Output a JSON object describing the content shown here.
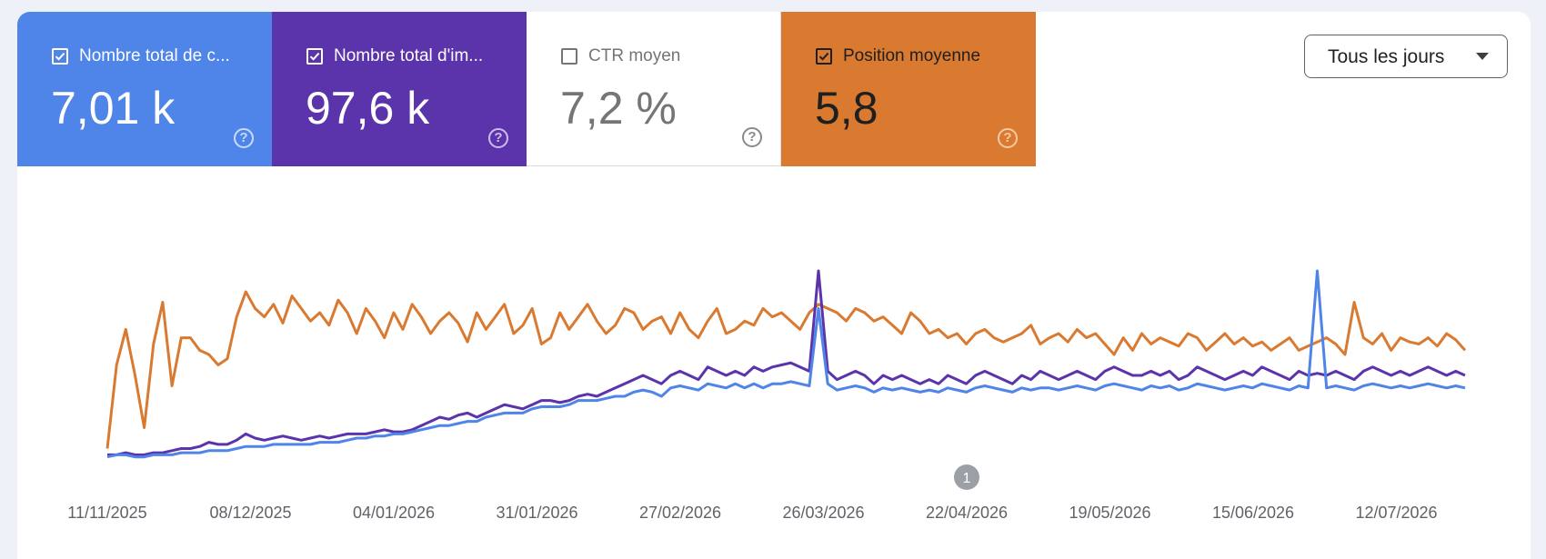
{
  "metrics": [
    {
      "label": "Nombre total de c...",
      "value": "7,01 k",
      "checked": true
    },
    {
      "label": "Nombre total d'im...",
      "value": "97,6 k",
      "checked": true
    },
    {
      "label": "CTR moyen",
      "value": "7,2 %",
      "checked": false
    },
    {
      "label": "Position moyenne",
      "value": "5,8",
      "checked": true
    }
  ],
  "help_glyph": "?",
  "period_select": {
    "value": "Tous les jours"
  },
  "annotation": {
    "label": "1",
    "date": "22/04/2026"
  },
  "colors": {
    "clicks": "#4f84e8",
    "impressions": "#5b34ac",
    "position": "#d97a30"
  },
  "chart_data": {
    "type": "line",
    "x_ticks": [
      "11/11/2025",
      "08/12/2025",
      "04/01/2026",
      "31/01/2026",
      "27/02/2026",
      "26/03/2026",
      "22/04/2026",
      "19/05/2026",
      "15/06/2026",
      "12/07/2026"
    ],
    "x_range": [
      "11/11/2025",
      "26/07/2026"
    ],
    "y_axis_visible": false,
    "grid": false,
    "legend": "metric cards above chart",
    "note": "Values are relative series levels (0-100 scale) estimated from the plot; axis values not shown.",
    "series": [
      {
        "name": "Position moyenne",
        "color": "#d97a30",
        "values": [
          5,
          45,
          62,
          40,
          15,
          55,
          75,
          35,
          58,
          58,
          52,
          50,
          45,
          48,
          68,
          80,
          72,
          68,
          74,
          65,
          78,
          72,
          66,
          70,
          64,
          76,
          70,
          60,
          72,
          66,
          58,
          70,
          62,
          74,
          68,
          60,
          66,
          70,
          65,
          56,
          70,
          62,
          68,
          74,
          60,
          64,
          72,
          55,
          58,
          70,
          62,
          68,
          74,
          66,
          60,
          64,
          72,
          70,
          62,
          66,
          68,
          60,
          70,
          62,
          58,
          66,
          72,
          60,
          62,
          66,
          64,
          72,
          68,
          70,
          66,
          62,
          70,
          74,
          72,
          70,
          66,
          72,
          70,
          66,
          68,
          64,
          60,
          70,
          66,
          60,
          62,
          58,
          60,
          55,
          60,
          62,
          58,
          56,
          58,
          60,
          64,
          55,
          58,
          60,
          56,
          62,
          58,
          60,
          55,
          50,
          58,
          52,
          60,
          55,
          58,
          56,
          54,
          60,
          58,
          52,
          56,
          60,
          55,
          58,
          54,
          56,
          52,
          55,
          58,
          52,
          54,
          56,
          58,
          55,
          50,
          75,
          58,
          55,
          60,
          52,
          58,
          56,
          55,
          58,
          54,
          60,
          57,
          52
        ]
      },
      {
        "name": "Nombre total d'impressions",
        "color": "#5b34ac",
        "values": [
          2,
          2,
          3,
          2,
          2,
          3,
          3,
          4,
          5,
          5,
          6,
          8,
          7,
          7,
          9,
          12,
          10,
          9,
          10,
          11,
          10,
          9,
          10,
          11,
          10,
          11,
          12,
          12,
          12,
          13,
          14,
          13,
          13,
          14,
          16,
          18,
          20,
          19,
          21,
          22,
          20,
          22,
          24,
          26,
          25,
          24,
          26,
          28,
          28,
          27,
          28,
          30,
          31,
          30,
          32,
          34,
          36,
          38,
          40,
          38,
          36,
          40,
          42,
          40,
          38,
          44,
          42,
          40,
          42,
          40,
          44,
          42,
          44,
          45,
          46,
          44,
          42,
          90,
          42,
          38,
          40,
          42,
          40,
          36,
          40,
          38,
          40,
          38,
          36,
          38,
          36,
          40,
          38,
          36,
          40,
          42,
          40,
          38,
          36,
          40,
          38,
          42,
          40,
          38,
          40,
          42,
          40,
          38,
          42,
          44,
          42,
          40,
          40,
          42,
          40,
          42,
          38,
          40,
          44,
          42,
          40,
          38,
          40,
          42,
          40,
          44,
          42,
          40,
          38,
          42,
          40,
          41,
          40,
          42,
          40,
          38,
          42,
          44,
          42,
          40,
          42,
          40,
          42,
          44,
          42,
          40,
          42,
          40
        ]
      },
      {
        "name": "Nombre total de clics",
        "color": "#4f84e8",
        "values": [
          1,
          2,
          2,
          1,
          1,
          2,
          2,
          2,
          3,
          3,
          3,
          4,
          4,
          4,
          5,
          6,
          6,
          6,
          7,
          7,
          7,
          7,
          7,
          8,
          8,
          8,
          9,
          10,
          10,
          11,
          11,
          12,
          12,
          13,
          14,
          15,
          16,
          16,
          17,
          18,
          18,
          20,
          21,
          22,
          22,
          22,
          24,
          25,
          25,
          25,
          26,
          28,
          28,
          28,
          29,
          30,
          30,
          32,
          33,
          32,
          30,
          34,
          35,
          34,
          33,
          36,
          35,
          34,
          36,
          34,
          36,
          34,
          36,
          36,
          37,
          36,
          35,
          72,
          36,
          33,
          34,
          35,
          34,
          32,
          34,
          33,
          34,
          33,
          32,
          33,
          32,
          34,
          33,
          32,
          34,
          35,
          34,
          33,
          32,
          34,
          33,
          34,
          34,
          33,
          34,
          35,
          34,
          33,
          35,
          36,
          35,
          34,
          33,
          35,
          34,
          35,
          33,
          34,
          36,
          35,
          34,
          33,
          34,
          35,
          34,
          36,
          35,
          34,
          33,
          35,
          34,
          90,
          34,
          35,
          34,
          33,
          35,
          36,
          35,
          34,
          35,
          34,
          35,
          36,
          35,
          34,
          35,
          34
        ]
      }
    ]
  }
}
